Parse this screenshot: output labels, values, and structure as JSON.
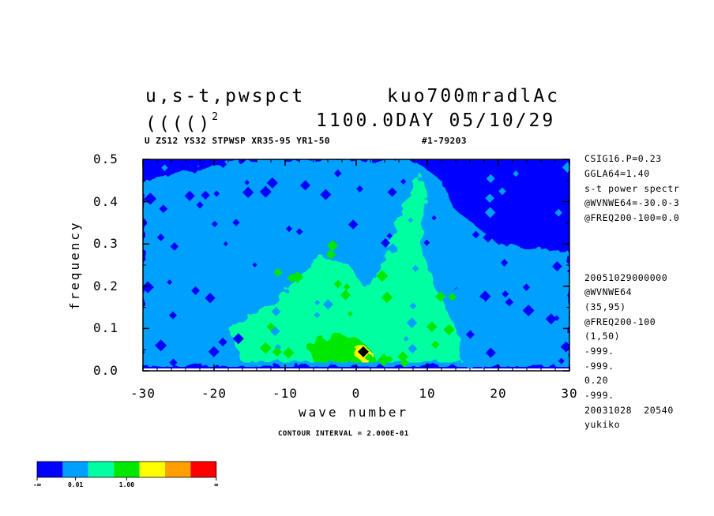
{
  "header": {
    "title_left": "u,s-t,pwspct",
    "title_right": "kuo700mradlAc",
    "subtitle_left": "(((()",
    "subtitle_sup": "2",
    "subtitle_right": "1100.0DAY 05/10/29",
    "info_line": "U ZS12 YS32 STPWSP XR35-95 YR1-50",
    "info_id": "#1-79203"
  },
  "side_notes": [
    "CSIG16.P=0.23",
    "GGLA64=1.40",
    "s-t power spectr",
    "@WVNWE64=-30.0-3",
    "@FREQ200-100=0.0",
    "20051029000000",
    "@WVNWE64",
    "(35,95)",
    "@FREQ200-100",
    "(1,50)",
    "-999.",
    "-999.",
    "0.20",
    "-999.",
    "20031028  20540",
    "yukiko"
  ],
  "contour_note": "CONTOUR INTERVAL = 2.000E-01",
  "colorbar": {
    "colors": [
      "#0000ff",
      "#00a0ff",
      "#00ffa0",
      "#00e800",
      "#ffff00",
      "#ffa000",
      "#ff0000"
    ],
    "labels": [
      "-∞",
      "0.01",
      "1.00",
      "∞"
    ]
  },
  "chart_data": {
    "type": "heatmap",
    "xlabel": "wave number",
    "ylabel": "frequency",
    "xlim": [
      -30,
      30
    ],
    "ylim": [
      0,
      0.5
    ],
    "xticks": [
      -30,
      -20,
      -10,
      0,
      10,
      20,
      30
    ],
    "yticks": [
      0.0,
      0.1,
      0.2,
      0.3,
      0.4,
      0.5
    ],
    "xtick_labels": [
      "-30",
      "-20",
      "-10",
      "0",
      "10",
      "20",
      "30"
    ],
    "ytick_labels": [
      "0.0",
      "0.1",
      "0.2",
      "0.3",
      "0.4",
      "0.5"
    ],
    "levels": [
      "-∞",
      "0.01",
      "1.00",
      "∞"
    ],
    "peak": {
      "x": 1,
      "y": 0.045
    },
    "regions": [
      {
        "level": 1,
        "points": [
          [
            -30,
            0.01
          ],
          [
            -30,
            0.45
          ],
          [
            -24,
            0.47
          ],
          [
            -16,
            0.5
          ],
          [
            3,
            0.5
          ],
          [
            8,
            0.5
          ],
          [
            12,
            0.45
          ],
          [
            14,
            0.38
          ],
          [
            20,
            0.3
          ],
          [
            30,
            0.28
          ],
          [
            30,
            0.01
          ]
        ]
      },
      {
        "level": 2,
        "points": [
          [
            -16,
            0.02
          ],
          [
            -18,
            0.1
          ],
          [
            -12,
            0.16
          ],
          [
            -8,
            0.22
          ],
          [
            -5,
            0.27
          ],
          [
            -1,
            0.25
          ],
          [
            1,
            0.2
          ],
          [
            3,
            0.22
          ],
          [
            5,
            0.32
          ],
          [
            7,
            0.4
          ],
          [
            9,
            0.47
          ],
          [
            10,
            0.42
          ],
          [
            9,
            0.3
          ],
          [
            11,
            0.2
          ],
          [
            14,
            0.1
          ],
          [
            15,
            0.02
          ]
        ]
      },
      {
        "level": 3,
        "points": [
          [
            -6,
            0.02
          ],
          [
            -7,
            0.06
          ],
          [
            -3,
            0.09
          ],
          [
            0,
            0.08
          ],
          [
            2,
            0.05
          ],
          [
            3,
            0.02
          ]
        ]
      },
      {
        "level": 4,
        "points": [
          [
            -0.5,
            0.04
          ],
          [
            1,
            0.06
          ],
          [
            2.4,
            0.04
          ],
          [
            1,
            0.02
          ]
        ]
      }
    ]
  }
}
